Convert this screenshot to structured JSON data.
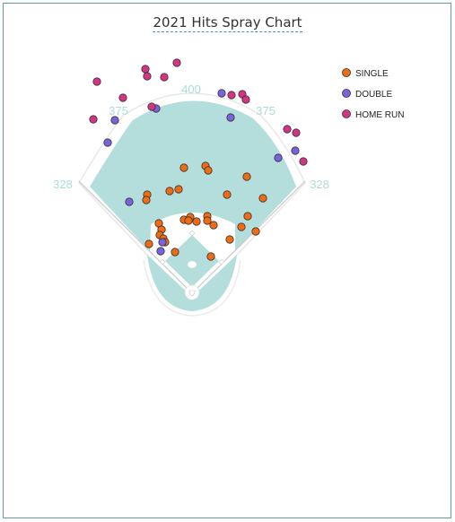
{
  "chart_data": {
    "type": "scatter",
    "title": "2021 Hits Spray Chart",
    "field_distances": {
      "left_line": "328",
      "left_center": "375",
      "center": "400",
      "right_center": "375",
      "right_line": "328"
    },
    "legend_placement": "top-right",
    "colors": {
      "grass": "#b3dedb",
      "infield_dirt": "#ffffff",
      "foul_line": "#bbbbbb",
      "outline": "#e6e6e6"
    },
    "series": [
      {
        "name": "SINGLE",
        "color": "#f26b10",
        "points": [
          [
            205,
            187
          ],
          [
            229,
            185
          ],
          [
            232,
            190
          ],
          [
            275,
            197
          ],
          [
            199,
            211
          ],
          [
            189,
            213
          ],
          [
            164,
            217
          ],
          [
            163,
            223
          ],
          [
            253,
            217
          ],
          [
            293,
            221
          ],
          [
            231,
            241
          ],
          [
            212,
            242
          ],
          [
            205,
            245
          ],
          [
            210,
            246
          ],
          [
            219,
            247
          ],
          [
            231,
            246
          ],
          [
            238,
            251
          ],
          [
            276,
            241
          ],
          [
            177,
            249
          ],
          [
            180,
            256
          ],
          [
            178,
            262
          ],
          [
            182,
            266
          ],
          [
            184,
            270
          ],
          [
            269,
            253
          ],
          [
            285,
            258
          ],
          [
            256,
            267
          ],
          [
            166,
            272
          ],
          [
            195,
            281
          ],
          [
            235,
            286
          ]
        ]
      },
      {
        "name": "DOUBLE",
        "color": "#7b61de",
        "points": [
          [
            247,
            104
          ],
          [
            174,
            121
          ],
          [
            128,
            134
          ],
          [
            257,
            131
          ],
          [
            120,
            159
          ],
          [
            310,
            176
          ],
          [
            329,
            168
          ],
          [
            144,
            225
          ],
          [
            179,
            280
          ],
          [
            181,
            270
          ]
        ]
      },
      {
        "name": "HOME RUN",
        "color": "#d63384",
        "points": [
          [
            197,
            70
          ],
          [
            162,
            77
          ],
          [
            164,
            85
          ],
          [
            183,
            86
          ],
          [
            108,
            91
          ],
          [
            258,
            106
          ],
          [
            270,
            105
          ],
          [
            274,
            111
          ],
          [
            137,
            109
          ],
          [
            169,
            119
          ],
          [
            104,
            133
          ],
          [
            320,
            144
          ],
          [
            330,
            148
          ],
          [
            338,
            180
          ]
        ]
      }
    ]
  }
}
